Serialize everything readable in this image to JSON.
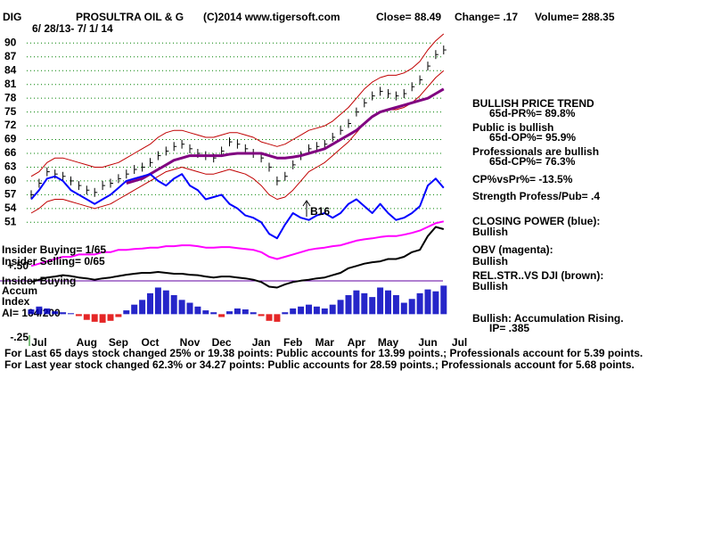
{
  "chart_data": [
    {
      "type": "line",
      "symbol": "DIG",
      "title": "PROSULTRA OIL & G",
      "subtitle": "6/ 28/13- 7/ 1/ 14",
      "source": "(C)2014 www.tigersoft.com",
      "close": "Close= 88.49",
      "change": "Change= .17",
      "volume": "Volume= 288.35",
      "categories": [
        null,
        "Jul",
        null,
        null,
        null,
        null,
        null,
        "Aug",
        null,
        null,
        null,
        "Sep",
        null,
        null,
        null,
        "Oct",
        null,
        null,
        null,
        null,
        "Nov",
        null,
        null,
        null,
        "Dec",
        null,
        null,
        null,
        null,
        "Jan",
        null,
        null,
        null,
        "Feb",
        null,
        null,
        null,
        "Mar",
        null,
        null,
        null,
        "Apr",
        null,
        null,
        null,
        "May",
        null,
        null,
        null,
        null,
        "Jun",
        null,
        null,
        null,
        "Jul"
      ],
      "ylim": [
        27,
        92
      ],
      "yticks": [
        51,
        54,
        57,
        60,
        63,
        66,
        69,
        72,
        75,
        78,
        81,
        84,
        87,
        90
      ],
      "grid": true,
      "grid_color": "#008000",
      "series": [
        {
          "style": "price-bars",
          "color": "#000000",
          "values": [
            57,
            59.5,
            62,
            61.5,
            61,
            60,
            59,
            58,
            57.5,
            59,
            59.5,
            60.5,
            61.5,
            62.5,
            63,
            64,
            65.5,
            66.5,
            67.5,
            68,
            67,
            66,
            65.5,
            65,
            66.5,
            68.5,
            68,
            67,
            66,
            65,
            63,
            60,
            61,
            63.5,
            65.5,
            67,
            67.5,
            68,
            69.5,
            71,
            72.5,
            75,
            77,
            78.5,
            79.5,
            79,
            78.5,
            79,
            80.5,
            82,
            85,
            87.5,
            88.5,
            null,
            null
          ]
        },
        {
          "style": "line",
          "color": "#c00000",
          "width": 1,
          "values": [
            61,
            62,
            64,
            65,
            65,
            64.5,
            64,
            63.5,
            63,
            63,
            63.5,
            64,
            65,
            66,
            67,
            68,
            69.5,
            70.5,
            71,
            71,
            70.5,
            70,
            69.5,
            69.5,
            70,
            70.5,
            70.5,
            70,
            69.5,
            68.5,
            68,
            67.5,
            68,
            69,
            70,
            71,
            71.5,
            72,
            73,
            74.5,
            76,
            78,
            80,
            81.5,
            82.5,
            83,
            83,
            83.5,
            84.5,
            86,
            88.5,
            90.5,
            92,
            null,
            null
          ]
        },
        {
          "style": "line",
          "color": "#c00000",
          "width": 1,
          "values": [
            53,
            54,
            55.5,
            56,
            56,
            55.5,
            55,
            54.5,
            54,
            54.5,
            55,
            56,
            57,
            58,
            59,
            60,
            61,
            62,
            62.5,
            63,
            62.5,
            62,
            61.5,
            61.5,
            62,
            62.5,
            62,
            61.5,
            60.5,
            59,
            57,
            56,
            56.5,
            58,
            60,
            62,
            63,
            64,
            65.5,
            67,
            68.5,
            70.5,
            72.5,
            74,
            75,
            75.5,
            75.5,
            76,
            77,
            78.5,
            80.5,
            82.5,
            84,
            null,
            null
          ]
        },
        {
          "style": "line",
          "color": "#800080",
          "width": 3,
          "values": [
            null,
            null,
            null,
            null,
            null,
            null,
            null,
            null,
            null,
            null,
            null,
            null,
            59.5,
            60,
            60.5,
            61.5,
            62.5,
            63.5,
            64.5,
            65,
            65.5,
            65.5,
            65.5,
            65.5,
            65.5,
            65.8,
            66,
            66,
            66,
            66,
            65.5,
            65,
            65,
            65.2,
            65.5,
            66,
            66.5,
            67,
            68,
            69,
            70,
            71,
            72.5,
            74,
            75,
            75.5,
            76,
            76.5,
            77,
            77.5,
            78,
            79,
            80,
            null,
            null
          ]
        },
        {
          "style": "line",
          "color": "#0000ff",
          "width": 2,
          "values": [
            56,
            58,
            60.5,
            61,
            60,
            58,
            57,
            56,
            55,
            56,
            57,
            58.5,
            60,
            60.5,
            61,
            61.5,
            60,
            59,
            60.5,
            61.5,
            59,
            58,
            56,
            56.5,
            57,
            55,
            54,
            52.5,
            52,
            51,
            48.5,
            47.5,
            50.5,
            53,
            52,
            51.5,
            52.5,
            53,
            52,
            53,
            55,
            56,
            54.5,
            53,
            55,
            53,
            51.5,
            52,
            53,
            54.5,
            59,
            60.5,
            58.5,
            null,
            null
          ]
        },
        {
          "style": "line",
          "color": "#ff00ff",
          "width": 2,
          "values": [
            41.5,
            42,
            42.5,
            43,
            43.5,
            43.5,
            44,
            44,
            44,
            44.5,
            44.5,
            45,
            45,
            45.2,
            45.3,
            45.5,
            45.5,
            45.8,
            45.8,
            46,
            46,
            45.8,
            45.5,
            45.5,
            45.6,
            45.6,
            45.4,
            45.2,
            45,
            44.5,
            43.5,
            43,
            43.5,
            44,
            44.5,
            45,
            45.3,
            45.5,
            45.8,
            46,
            46.5,
            47,
            47.3,
            47.5,
            47.8,
            48,
            48,
            48.3,
            48.7,
            49.2,
            50,
            50.8,
            51.2,
            null,
            null
          ]
        },
        {
          "style": "line",
          "color": "#000000",
          "width": 2,
          "values": [
            38,
            38.5,
            39,
            39.2,
            39.5,
            39.3,
            39,
            38.8,
            38.5,
            38.8,
            39,
            39.3,
            39.6,
            39.8,
            40,
            40,
            40.2,
            40,
            39.8,
            39.8,
            39.6,
            39.5,
            39.2,
            39,
            39.2,
            39.2,
            39,
            38.8,
            38.5,
            38,
            37,
            36.8,
            37.5,
            38,
            38.3,
            38.5,
            38.8,
            39,
            39.5,
            40,
            41,
            41.5,
            42,
            42.3,
            42.5,
            43,
            43,
            43.5,
            44.5,
            45,
            48,
            50,
            49.5,
            null,
            null
          ]
        }
      ],
      "annotations": [
        "B16"
      ],
      "indicator_notes": [
        "BULLISH PRICE TREND",
        "65d-PR%= 89.8%",
        "Public is bullish",
        "65d-OP%= 95.9%",
        "Professionals are bullish",
        "65d-CP%= 76.3%",
        "CP%vsPr%= -13.5%",
        "Strength Profess/Pub= .4",
        "CLOSING POWER (blue):",
        "Bullish",
        "OBV (magenta):",
        "Bullish",
        "REL.STR..VS DJI (brown):",
        "Bullish",
        "Bullish: Accumulation Rising.",
        "IP=  .385"
      ],
      "insider_notes": [
        "Insider Buying= 1/65",
        "Insider Selling= 0/65",
        "Insider Buying",
        "Accum",
        "Index",
        "AI= 164/200"
      ],
      "footer": [
        "For Last 65 days stock changed  25% or  19.38 points:  Public accounts for  13.99 points.;  Professionals account for  5.39 points.",
        "For Last year stock changed  62.3% or  34.27 points:  Public accounts for  28.59 points.;  Professionals account for  5.68 points."
      ]
    },
    {
      "type": "bar",
      "ylim": [
        -0.25,
        0.5
      ],
      "yticks": [
        {
          "value": 0.5,
          "label": "+.50"
        },
        {
          "value": -0.25,
          "label": "-.25"
        }
      ],
      "pos_color": "#0000c0",
      "neg_color": "#e00000",
      "values": [
        0.05,
        0.08,
        0.06,
        0.03,
        0.02,
        0.01,
        -0.02,
        -0.06,
        -0.08,
        -0.09,
        -0.07,
        -0.03,
        0.04,
        0.1,
        0.15,
        0.22,
        0.28,
        0.25,
        0.2,
        0.15,
        0.12,
        0.08,
        0.04,
        0.02,
        -0.03,
        0.03,
        0.06,
        0.05,
        0.02,
        -0.02,
        -0.07,
        -0.08,
        0.02,
        0.06,
        0.08,
        0.1,
        0.08,
        0.06,
        0.1,
        0.15,
        0.2,
        0.25,
        0.22,
        0.18,
        0.28,
        0.25,
        0.2,
        0.12,
        0.16,
        0.22,
        0.26,
        0.24,
        0.3
      ]
    }
  ]
}
